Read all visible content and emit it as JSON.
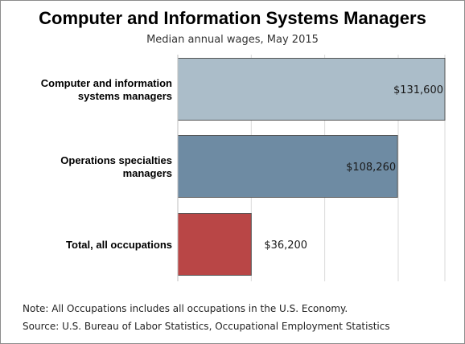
{
  "chart_data": {
    "type": "bar",
    "orientation": "horizontal",
    "title": "Computer and Information Systems Managers",
    "subtitle": "Median annual wages, May 2015",
    "categories": [
      [
        "Computer and information",
        "systems managers"
      ],
      [
        "Operations specialties",
        "managers"
      ],
      [
        "Total, all occupations"
      ]
    ],
    "values": [
      131600,
      108260,
      36200
    ],
    "value_labels": [
      "$131,600",
      "$108,260",
      "$36,200"
    ],
    "colors": [
      "#abbdc9",
      "#6e8ba3",
      "#b94646"
    ],
    "xlim": [
      0,
      131600
    ],
    "grid": true,
    "legend": "none"
  },
  "notes": {
    "line1": "Note: All Occupations includes all occupations in the U.S. Economy.",
    "line2": "Source: U.S. Bureau of Labor Statistics, Occupational Employment Statistics"
  }
}
